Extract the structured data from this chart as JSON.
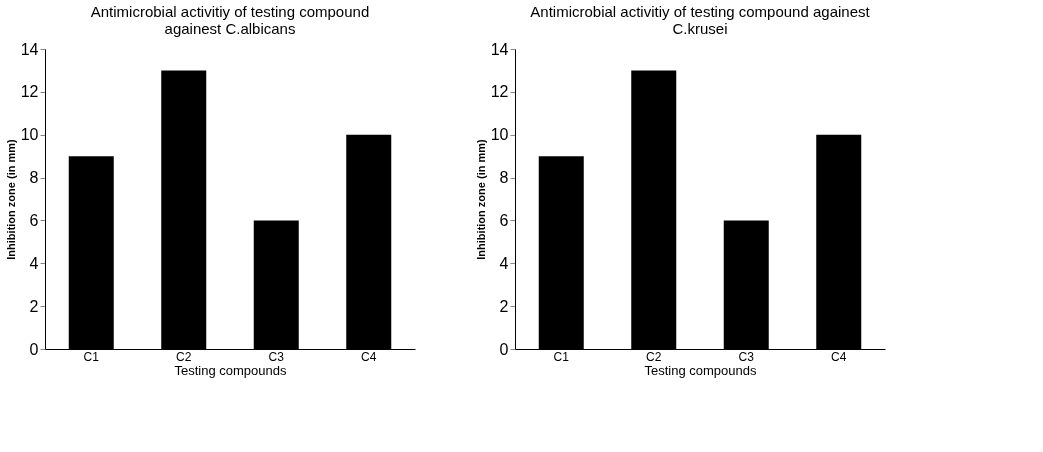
{
  "chart_data": [
    {
      "type": "bar",
      "title": "Antimicrobial activitiy of testing compound\nagainest C.albicans",
      "xlabel": "Testing compounds",
      "ylabel": "Inhibition zone (in mm)",
      "categories": [
        "C1",
        "C2",
        "C3",
        "C4"
      ],
      "values": [
        9,
        13,
        6,
        10
      ],
      "color": "#000000",
      "ylim": [
        0,
        14
      ],
      "yticks": [
        0,
        2,
        4,
        6,
        8,
        10,
        12,
        14
      ],
      "grid": false
    },
    {
      "type": "bar",
      "title": "Antimicrobial activitiy of testing compound againest\nC.krusei",
      "xlabel": "Testing compounds",
      "ylabel": "Inhibition zone (in mm)",
      "categories": [
        "C1",
        "C2",
        "C3",
        "C4"
      ],
      "values": [
        9,
        13,
        6,
        10
      ],
      "color": "#000000",
      "ylim": [
        0,
        14
      ],
      "yticks": [
        0,
        2,
        4,
        6,
        8,
        10,
        12,
        14
      ],
      "grid": false
    }
  ]
}
